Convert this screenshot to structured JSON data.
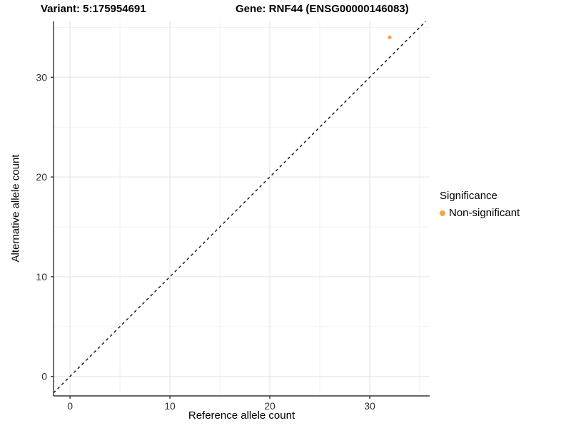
{
  "header": {
    "variant_title": "Variant: 5:175954691",
    "gene_title": "Gene: RNF44 (ENSG00000146083)"
  },
  "legend": {
    "title": "Significance",
    "items": [
      {
        "label": "Non-significant",
        "color": "#F9A242"
      }
    ]
  },
  "chart_data": {
    "type": "scatter",
    "title": "Variant: 5:175954691 | Gene: RNF44 (ENSG00000146083)",
    "xlabel": "Reference allele count",
    "ylabel": "Alternative allele count",
    "xlim": [
      -1.65,
      36.0
    ],
    "ylim": [
      -1.95,
      35.6
    ],
    "x_ticks": [
      0,
      10,
      20,
      30
    ],
    "y_ticks": [
      0,
      10,
      20,
      30
    ],
    "minor_tick_step": 5,
    "grid": true,
    "legend_position": "right",
    "series": [
      {
        "name": "Non-significant",
        "color": "#F9A242",
        "point_radius": 2.6,
        "points": [
          {
            "x": 32,
            "y": 34
          }
        ]
      }
    ],
    "reference_line": {
      "equation": "y = x",
      "style": "dashed",
      "color": "#000000"
    }
  },
  "colors": {
    "grid_major": "#e3e3e3",
    "grid_minor": "#f1f1f1",
    "axis_line": "#333333",
    "tick_label": "#303030"
  }
}
